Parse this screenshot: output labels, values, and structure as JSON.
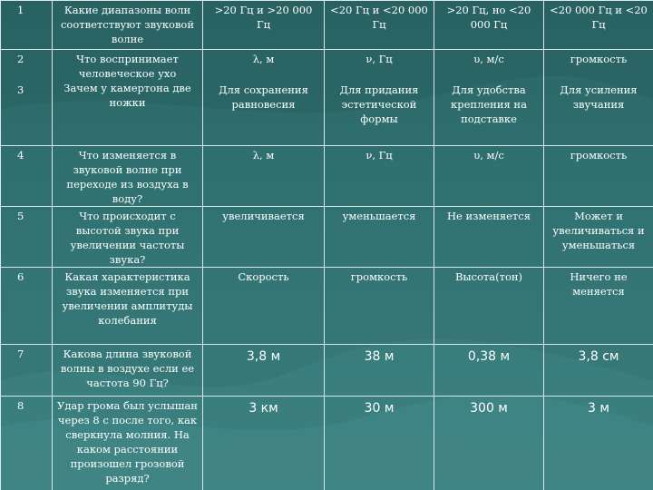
{
  "rows": [
    {
      "num": "1",
      "question": "Какие диапазоны волн соответствуют звуковой волне",
      "a": ">20 Гц и >20 000 Гц",
      "b": "<20 Гц и <20 000 Гц",
      "c": ">20 Гц, но <20 000 Гц",
      "d": "<20 000 Гц и <20 Гц"
    },
    {
      "num": "2",
      "num2": "3",
      "question": "Что воспринимает человеческое ухо",
      "question2": "Зачем у камертона две ножки",
      "a": "λ, м",
      "b": "ν, Гц",
      "c": "υ, м/с",
      "d": "громкость",
      "a2": "Для сохранения равновесия",
      "b2": "Для придания эстетической формы",
      "c2": "Для удобства крепления на подставке",
      "d2": "Для усиления звучания"
    },
    {
      "num": "4",
      "question": "Что изменяется в звуковой волне при переходе из воздуха в воду?",
      "a": "λ, м",
      "b": "ν, Гц",
      "c": "υ, м/с",
      "d": "громкость"
    },
    {
      "num": "5",
      "question": "Что происходит с высотой звука при увеличении частоты звука?",
      "a": "увеличивается",
      "b": "уменьшается",
      "c": "Не изменяется",
      "d": "Может и увеличиваться и уменьшаться"
    },
    {
      "num": "6",
      "question": "Какая характеристика звука изменяется при увеличении амплитуды колебания",
      "a": "Скорость",
      "b": "громкость",
      "c": "Высота(тон)",
      "d": "Ничего не меняется"
    },
    {
      "num": "7",
      "question": "Какова длина звуковой волны в воздухе если ее частота 90 Гц?",
      "a": "3,8 м",
      "b": "38 м",
      "c": "0,38 м",
      "d": "3,8 см"
    },
    {
      "num": "8",
      "question": "Удар грома был услышан через 8 с после того, как сверкнула молния. На каком расстоянии произошел грозовой разряд?",
      "a": "3 км",
      "b": "30 м",
      "c": "300 м",
      "d": "3 м"
    }
  ]
}
